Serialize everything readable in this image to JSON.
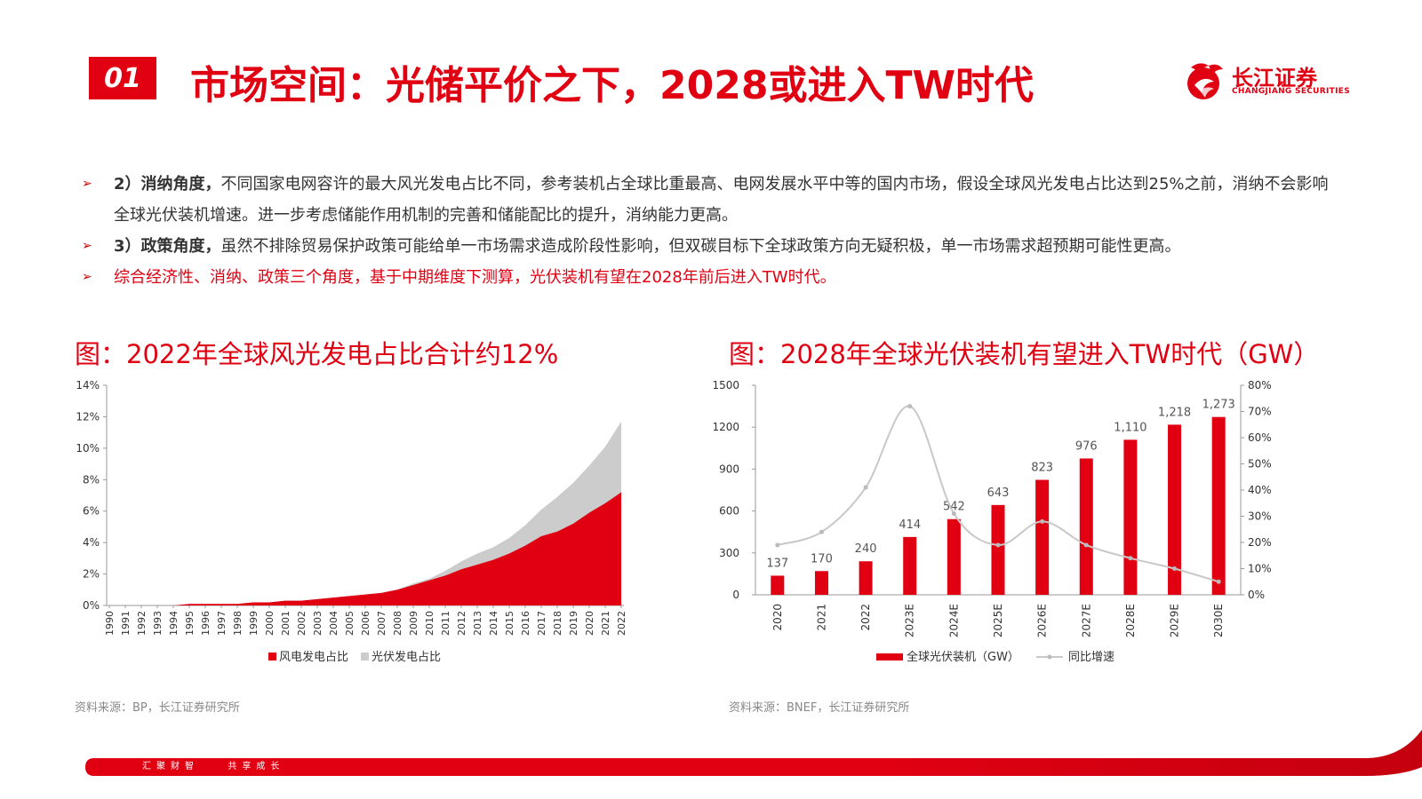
{
  "header": {
    "section_number": "01",
    "title": "市场空间：光储平价之下，2028或进入TW时代",
    "logo_cn": "长江证券",
    "logo_en": "CHANGJIANG SECURITIES"
  },
  "bullets": [
    {
      "lead": "2）消纳角度，",
      "text": "不同国家电网容许的最大风光发电占比不同，参考装机占全球比重最高、电网发展水平中等的国内市场，假设全球风光发电占比达到25%之前，消纳不会影响全球光伏装机增速。进一步考虑储能作用机制的完善和储能配比的提升，消纳能力更高。"
    },
    {
      "lead": "3）政策角度，",
      "text": "虽然不排除贸易保护政策可能给单一市场需求造成阶段性影响，但双碳目标下全球政策方向无疑积极，单一市场需求超预期可能性更高。"
    },
    {
      "lead": "",
      "text": "综合经济性、消纳、政策三个角度，基于中期维度下测算，光伏装机有望在2028年前后进入TW时代。"
    }
  ],
  "colors": {
    "accent": "#e00012",
    "gray_area": "#cccccc",
    "line_gray": "#c8c8c8"
  },
  "left_chart": {
    "title": "图：2022年全球风光发电占比合计约12%",
    "source": "资料来源：BP，长江证券研究所",
    "legend": [
      "风电发电占比",
      "光伏发电占比"
    ]
  },
  "right_chart": {
    "title": "图：2028年全球光伏装机有望进入TW时代（GW）",
    "source": "资料来源：BNEF，长江证券研究所",
    "legend": [
      "全球光伏装机（GW）",
      "同比增速"
    ]
  },
  "footer": {
    "left_text": "汇聚财智",
    "right_text": "共享成长"
  },
  "chart_data": [
    {
      "type": "area",
      "title": "",
      "x": [
        "1990",
        "1991",
        "1992",
        "1993",
        "1994",
        "1995",
        "1996",
        "1997",
        "1998",
        "1999",
        "2000",
        "2001",
        "2002",
        "2003",
        "2004",
        "2005",
        "2006",
        "2007",
        "2008",
        "2009",
        "2010",
        "2011",
        "2012",
        "2013",
        "2014",
        "2015",
        "2016",
        "2017",
        "2018",
        "2019",
        "2020",
        "2021",
        "2022"
      ],
      "series": [
        {
          "name": "风电发电占比",
          "values": [
            0.0,
            0.0,
            0.0,
            0.0,
            0.0,
            0.1,
            0.1,
            0.1,
            0.1,
            0.2,
            0.2,
            0.3,
            0.3,
            0.4,
            0.5,
            0.6,
            0.7,
            0.8,
            1.0,
            1.3,
            1.6,
            1.9,
            2.3,
            2.6,
            2.9,
            3.3,
            3.8,
            4.4,
            4.7,
            5.2,
            5.9,
            6.5,
            7.2
          ]
        },
        {
          "name": "光伏发电占比",
          "values": [
            0.0,
            0.0,
            0.0,
            0.0,
            0.0,
            0.0,
            0.0,
            0.0,
            0.0,
            0.0,
            0.0,
            0.0,
            0.0,
            0.0,
            0.0,
            0.0,
            0.0,
            0.0,
            0.0,
            0.1,
            0.1,
            0.3,
            0.5,
            0.7,
            0.8,
            1.0,
            1.3,
            1.7,
            2.2,
            2.6,
            3.0,
            3.6,
            4.5
          ]
        }
      ],
      "stacked": true,
      "ylim": [
        0,
        14
      ],
      "yticks": [
        "0%",
        "2%",
        "4%",
        "6%",
        "8%",
        "10%",
        "12%",
        "14%"
      ],
      "legend_position": "bottom",
      "grid": false
    },
    {
      "type": "bar",
      "title": "",
      "categories": [
        "2020",
        "2021",
        "2022",
        "2023E",
        "2024E",
        "2025E",
        "2026E",
        "2027E",
        "2028E",
        "2029E",
        "2030E"
      ],
      "series": [
        {
          "name": "全球光伏装机（GW）",
          "values": [
            137,
            170,
            240,
            414,
            542,
            643,
            823,
            976,
            1110,
            1218,
            1273
          ],
          "labels": [
            "137",
            "170",
            "240",
            "414",
            "542",
            "643",
            "823",
            "976",
            "1,110",
            "1,218",
            "1,273"
          ],
          "type": "bar",
          "axis": "left"
        },
        {
          "name": "同比增速",
          "values": [
            19,
            24,
            41,
            72,
            31,
            19,
            28,
            19,
            14,
            10,
            5
          ],
          "type": "line",
          "axis": "right"
        }
      ],
      "ylim": [
        0,
        1500
      ],
      "yticks": [
        "0",
        "300",
        "600",
        "900",
        "1200",
        "1500"
      ],
      "y2lim": [
        0,
        80
      ],
      "y2ticks": [
        "0%",
        "10%",
        "20%",
        "30%",
        "40%",
        "50%",
        "60%",
        "70%",
        "80%"
      ],
      "legend_position": "bottom",
      "grid": false
    }
  ]
}
